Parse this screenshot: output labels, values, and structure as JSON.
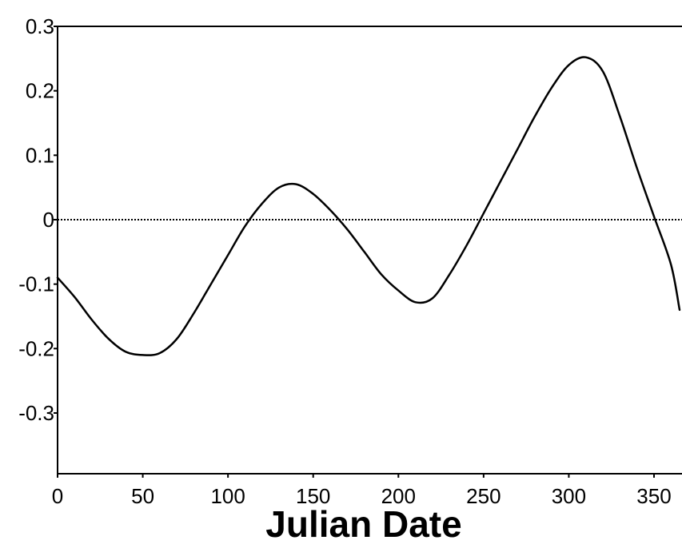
{
  "chart_data": {
    "type": "line",
    "title": "",
    "xlabel": "Julian Date",
    "ylabel": "",
    "xlim": [
      0,
      365
    ],
    "ylim": [
      -0.38,
      0.3
    ],
    "x_ticks": [
      0,
      50,
      100,
      150,
      200,
      250,
      300,
      350
    ],
    "x_tick_labels": [
      "0",
      "50",
      "100",
      "150",
      "200",
      "250",
      "300",
      "350"
    ],
    "y_ticks": [
      0.3,
      0.2,
      0.1,
      0,
      -0.1,
      -0.2,
      -0.3
    ],
    "y_tick_labels": [
      "0.3",
      "0.2",
      "0.1",
      "0",
      "-0.1",
      "-0.2",
      "-0.3"
    ],
    "grid": false,
    "reference_line": {
      "y": 0,
      "style": "dotted"
    },
    "series": [
      {
        "color": "#000000",
        "x": [
          0,
          10,
          20,
          30,
          40,
          50,
          60,
          70,
          80,
          90,
          100,
          110,
          120,
          130,
          140,
          150,
          160,
          170,
          180,
          190,
          200,
          210,
          220,
          230,
          240,
          250,
          260,
          270,
          280,
          290,
          300,
          310,
          320,
          330,
          340,
          350,
          360,
          365
        ],
        "y": [
          -0.09,
          -0.12,
          -0.155,
          -0.185,
          -0.205,
          -0.21,
          -0.207,
          -0.185,
          -0.145,
          -0.1,
          -0.055,
          -0.01,
          0.025,
          0.05,
          0.055,
          0.04,
          0.015,
          -0.015,
          -0.05,
          -0.085,
          -0.11,
          -0.128,
          -0.122,
          -0.085,
          -0.04,
          0.01,
          0.06,
          0.11,
          0.16,
          0.205,
          0.24,
          0.252,
          0.23,
          0.16,
          0.08,
          0.005,
          -0.07,
          -0.14
        ]
      }
    ]
  }
}
